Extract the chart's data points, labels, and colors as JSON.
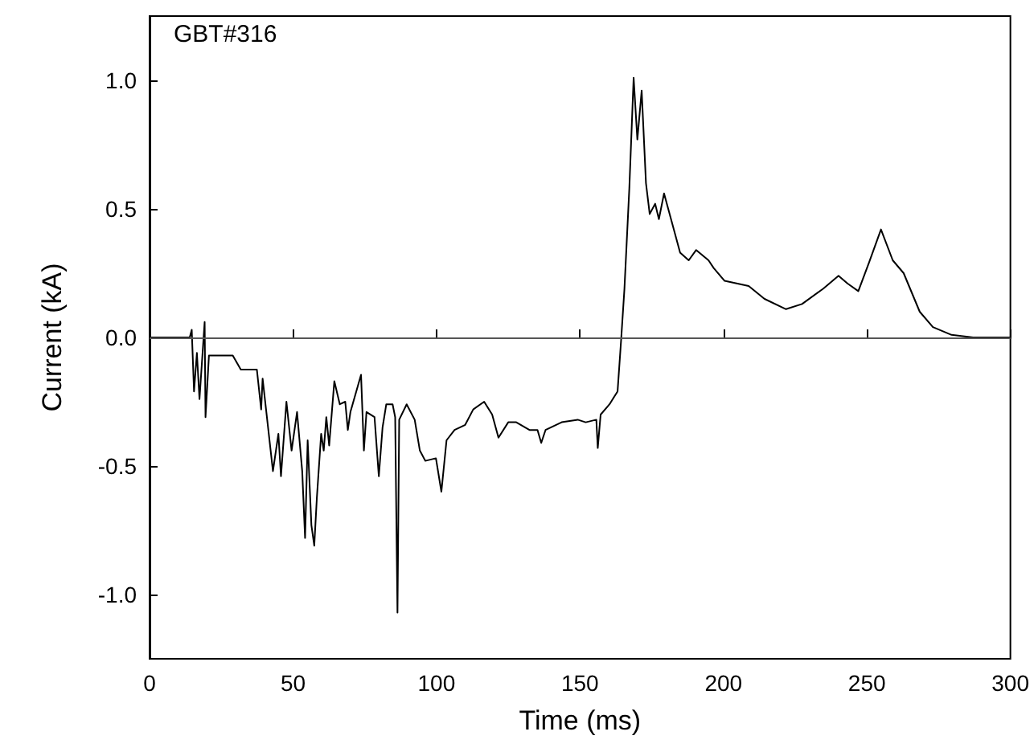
{
  "chart_data": {
    "type": "line",
    "xlabel": "Time (ms)",
    "ylabel": "Current (kA)",
    "annotations": [
      "GBT#316"
    ],
    "xlim": [
      0,
      300
    ],
    "xticks": [
      0,
      50,
      100,
      150,
      200,
      250,
      300
    ],
    "ylim": [
      -1.25,
      1.25
    ],
    "yticks": [
      {
        "value": -1,
        "label": "-1.0"
      },
      {
        "value": -0.5,
        "label": "-0.5"
      },
      {
        "value": 0,
        "label": "0.0"
      },
      {
        "value": 0.5,
        "label": "0.5"
      },
      {
        "value": 1,
        "label": "1.0"
      }
    ],
    "grid": false,
    "marker": "none",
    "line_style": "solid",
    "ref_lines": [
      {
        "axis": "y",
        "value": 0,
        "label": null,
        "color": "#555555"
      }
    ],
    "series": [
      {
        "color": "#000000",
        "x": [
          0,
          14,
          14.7,
          15.5,
          16.5,
          17.4,
          19.2,
          19.5,
          20.7,
          29,
          31.8,
          37.4,
          38.9,
          39.4,
          43,
          44.9,
          45.8,
          47.7,
          49.5,
          51.4,
          53.2,
          54.2,
          55.1,
          56.4,
          57.4,
          58.3,
          59.8,
          60.7,
          61.6,
          62.6,
          64.4,
          66.3,
          68.2,
          69.1,
          70,
          73.7,
          74.7,
          75.6,
          78.4,
          79.9,
          81.2,
          82.5,
          84.7,
          85.6,
          86.4,
          87,
          89.6,
          92.4,
          94.2,
          96.1,
          99.8,
          101.7,
          103.5,
          106.3,
          110,
          112.8,
          116.6,
          119.4,
          121.6,
          125,
          127.8,
          132.4,
          135.2,
          136.5,
          138,
          143.6,
          149.2,
          152,
          155.7,
          156.2,
          157.2,
          160.3,
          163.1,
          164.4,
          165.5,
          167.2,
          168.7,
          170,
          171.5,
          173,
          174.3,
          176.2,
          177.5,
          179.3,
          182.7,
          184.9,
          187.9,
          190.5,
          194.8,
          196.6,
          200.4,
          208.8,
          214.3,
          221.8,
          227.4,
          234.8,
          240.1,
          243.2,
          247,
          250.7,
          254.9,
          259,
          262.8,
          268.4,
          273,
          279.5,
          287,
          300
        ],
        "values": [
          0,
          0,
          0.03,
          -0.21,
          -0.06,
          -0.24,
          0.06,
          -0.31,
          -0.07,
          -0.07,
          -0.125,
          -0.125,
          -0.28,
          -0.16,
          -0.52,
          -0.375,
          -0.54,
          -0.25,
          -0.44,
          -0.29,
          -0.52,
          -0.78,
          -0.4,
          -0.73,
          -0.81,
          -0.625,
          -0.375,
          -0.44,
          -0.31,
          -0.42,
          -0.17,
          -0.26,
          -0.25,
          -0.36,
          -0.29,
          -0.145,
          -0.44,
          -0.29,
          -0.31,
          -0.54,
          -0.35,
          -0.26,
          -0.26,
          -0.31,
          -1.07,
          -0.32,
          -0.26,
          -0.32,
          -0.44,
          -0.48,
          -0.47,
          -0.6,
          -0.4,
          -0.36,
          -0.34,
          -0.28,
          -0.25,
          -0.3,
          -0.39,
          -0.33,
          -0.33,
          -0.36,
          -0.36,
          -0.41,
          -0.36,
          -0.33,
          -0.32,
          -0.33,
          -0.32,
          -0.43,
          -0.3,
          -0.26,
          -0.21,
          0,
          0.19,
          0.58,
          1.01,
          0.77,
          0.96,
          0.6,
          0.48,
          0.52,
          0.46,
          0.56,
          0.42,
          0.33,
          0.3,
          0.34,
          0.3,
          0.27,
          0.22,
          0.2,
          0.15,
          0.11,
          0.13,
          0.19,
          0.24,
          0.21,
          0.18,
          0.29,
          0.42,
          0.3,
          0.25,
          0.1,
          0.04,
          0.01,
          0,
          0
        ]
      }
    ]
  }
}
